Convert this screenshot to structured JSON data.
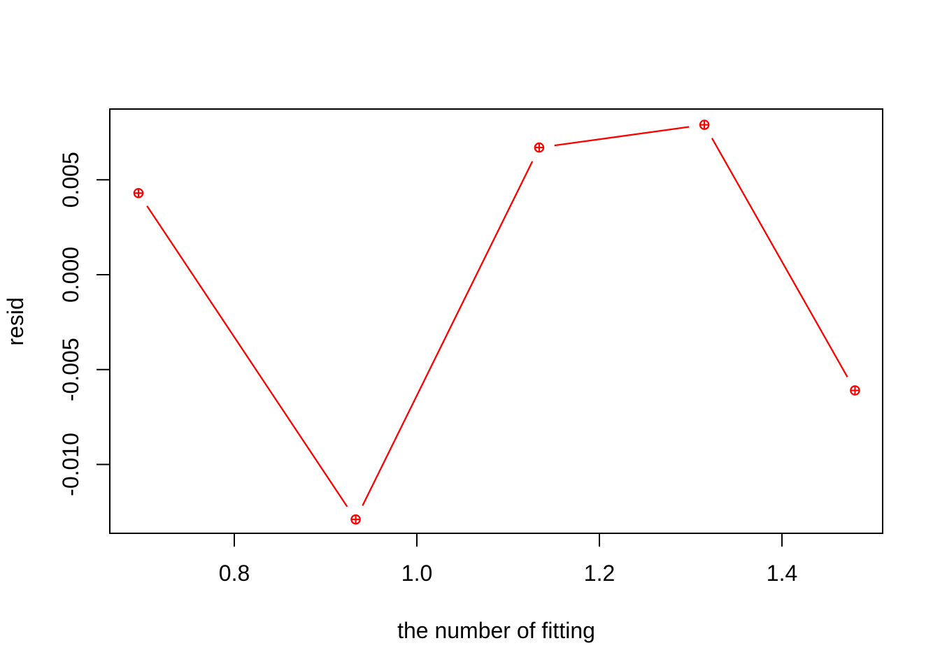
{
  "figure": {
    "background_color": "#ffffff",
    "axis_color": "#000000",
    "series_color": "#ff0000",
    "xlabel": "the number of fitting",
    "ylabel": "resid"
  },
  "chart_data": {
    "type": "line",
    "style": "r-base-type-b",
    "marker": "circle-plus",
    "title": "",
    "xlabel": "the number of fitting",
    "ylabel": "resid",
    "x": [
      0.695,
      0.933,
      1.134,
      1.315,
      1.48
    ],
    "y": [
      0.0043,
      -0.0129,
      0.0067,
      0.0079,
      -0.0061
    ],
    "xlim": [
      0.6636,
      1.5103
    ],
    "ylim": [
      -0.01363,
      0.00873
    ],
    "xticks": [
      0.8,
      1.0,
      1.2,
      1.4
    ],
    "xtick_labels": [
      "0.8",
      "1.0",
      "1.2",
      "1.4"
    ],
    "yticks": [
      0.005,
      0.0,
      -0.005,
      -0.01
    ],
    "ytick_labels": [
      "0.005",
      "0.000",
      "-0.005",
      "-0.010"
    ],
    "grid": false,
    "legend": null
  }
}
